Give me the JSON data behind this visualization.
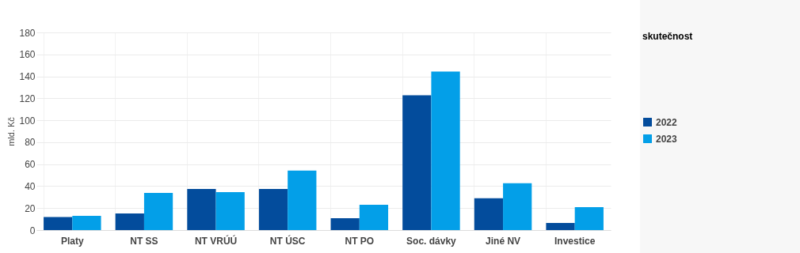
{
  "chart_data": {
    "type": "bar",
    "ylabel": "mld. Kč",
    "legend_title": "skutečnost",
    "categories": [
      "Platy",
      "NT SS",
      "NT VRÚÚ",
      "NT ÚSC",
      "NT PO",
      "Soc. dávky",
      "Jiné NV",
      "Investice"
    ],
    "series": [
      {
        "name": "2022",
        "color": "#034c9c",
        "values": [
          11.8,
          15.2,
          37.5,
          37.5,
          10.8,
          122.7,
          28.9,
          6.5
        ]
      },
      {
        "name": "2023",
        "color": "#039fe8",
        "values": [
          13.0,
          33.9,
          34.6,
          54.1,
          23.1,
          144.4,
          42.6,
          20.9
        ]
      }
    ],
    "ylim": [
      0,
      180
    ],
    "yticks": [
      0,
      20,
      40,
      60,
      80,
      100,
      120,
      140,
      160,
      180
    ],
    "grid": true,
    "legend": "right"
  }
}
